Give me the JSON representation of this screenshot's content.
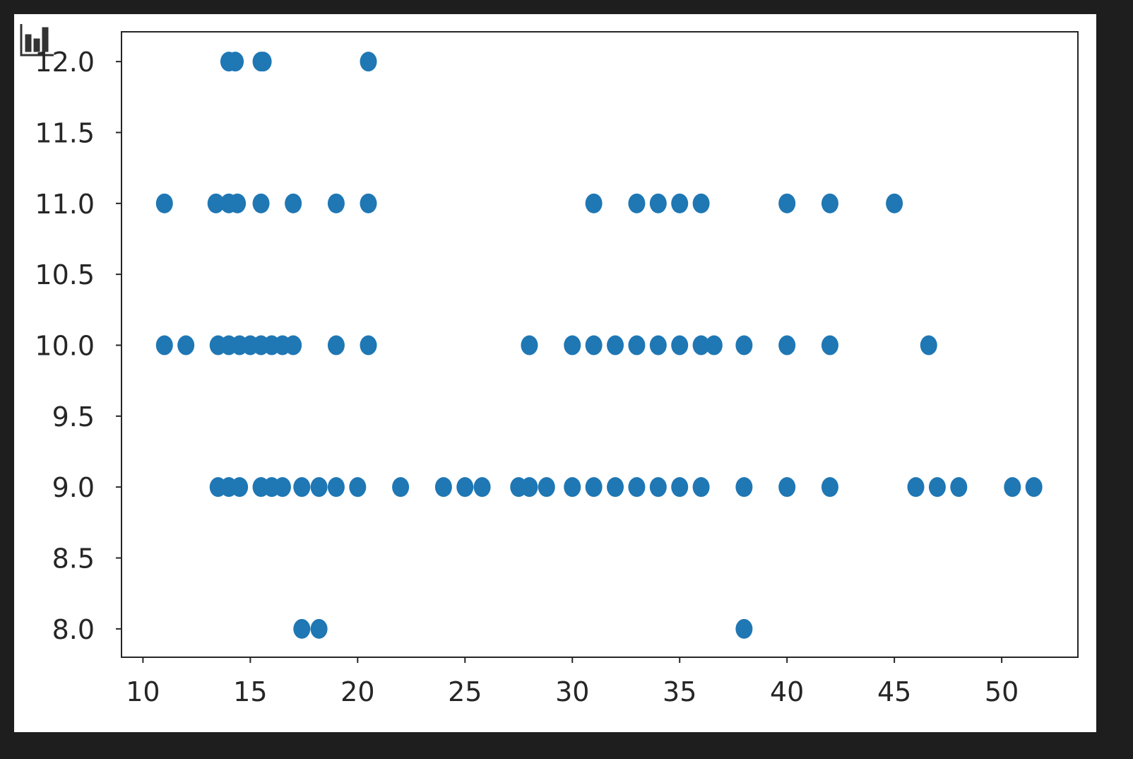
{
  "chart_data": {
    "type": "scatter",
    "title": "",
    "xlabel": "",
    "ylabel": "",
    "xlim": [
      9.0,
      53.55
    ],
    "ylim": [
      7.8,
      12.21
    ],
    "grid": false,
    "marker_color": "#1f77b4",
    "xticks": [
      "10",
      "15",
      "20",
      "25",
      "30",
      "35",
      "40",
      "45",
      "50"
    ],
    "yticks": [
      "8.0",
      "8.5",
      "9.0",
      "9.5",
      "10.0",
      "10.5",
      "11.0",
      "11.5",
      "12.0"
    ],
    "points": [
      [
        14.0,
        12
      ],
      [
        14.3,
        12
      ],
      [
        15.5,
        12
      ],
      [
        15.6,
        12
      ],
      [
        20.5,
        12
      ],
      [
        11,
        11
      ],
      [
        13.4,
        11
      ],
      [
        14,
        11
      ],
      [
        14.4,
        11
      ],
      [
        15.5,
        11
      ],
      [
        17,
        11
      ],
      [
        19,
        11
      ],
      [
        20.5,
        11
      ],
      [
        31,
        11
      ],
      [
        33,
        11
      ],
      [
        34,
        11
      ],
      [
        35,
        11
      ],
      [
        36,
        11
      ],
      [
        40,
        11
      ],
      [
        42,
        11
      ],
      [
        45,
        11
      ],
      [
        11,
        10
      ],
      [
        12,
        10
      ],
      [
        13.5,
        10
      ],
      [
        14,
        10
      ],
      [
        14.5,
        10
      ],
      [
        15,
        10
      ],
      [
        15.5,
        10
      ],
      [
        16,
        10
      ],
      [
        16.5,
        10
      ],
      [
        17,
        10
      ],
      [
        19,
        10
      ],
      [
        20.5,
        10
      ],
      [
        28,
        10
      ],
      [
        30,
        10
      ],
      [
        31,
        10
      ],
      [
        32,
        10
      ],
      [
        33,
        10
      ],
      [
        34,
        10
      ],
      [
        35,
        10
      ],
      [
        36,
        10
      ],
      [
        36.6,
        10
      ],
      [
        38,
        10
      ],
      [
        40,
        10
      ],
      [
        42,
        10
      ],
      [
        46.6,
        10
      ],
      [
        13.5,
        9
      ],
      [
        14,
        9
      ],
      [
        14.5,
        9
      ],
      [
        15.5,
        9
      ],
      [
        16,
        9
      ],
      [
        16.5,
        9
      ],
      [
        17.4,
        9
      ],
      [
        18.2,
        9
      ],
      [
        19,
        9
      ],
      [
        20,
        9
      ],
      [
        22,
        9
      ],
      [
        24,
        9
      ],
      [
        25,
        9
      ],
      [
        25.8,
        9
      ],
      [
        27.5,
        9
      ],
      [
        28,
        9
      ],
      [
        28.8,
        9
      ],
      [
        30,
        9
      ],
      [
        31,
        9
      ],
      [
        32,
        9
      ],
      [
        33,
        9
      ],
      [
        34,
        9
      ],
      [
        35,
        9
      ],
      [
        36,
        9
      ],
      [
        38,
        9
      ],
      [
        40,
        9
      ],
      [
        42,
        9
      ],
      [
        46,
        9
      ],
      [
        47,
        9
      ],
      [
        48,
        9
      ],
      [
        50.5,
        9
      ],
      [
        51.5,
        9
      ],
      [
        17.4,
        8
      ],
      [
        18.2,
        8
      ],
      [
        38,
        8
      ]
    ]
  },
  "toolbar": {
    "icon": "bar-chart-icon"
  }
}
